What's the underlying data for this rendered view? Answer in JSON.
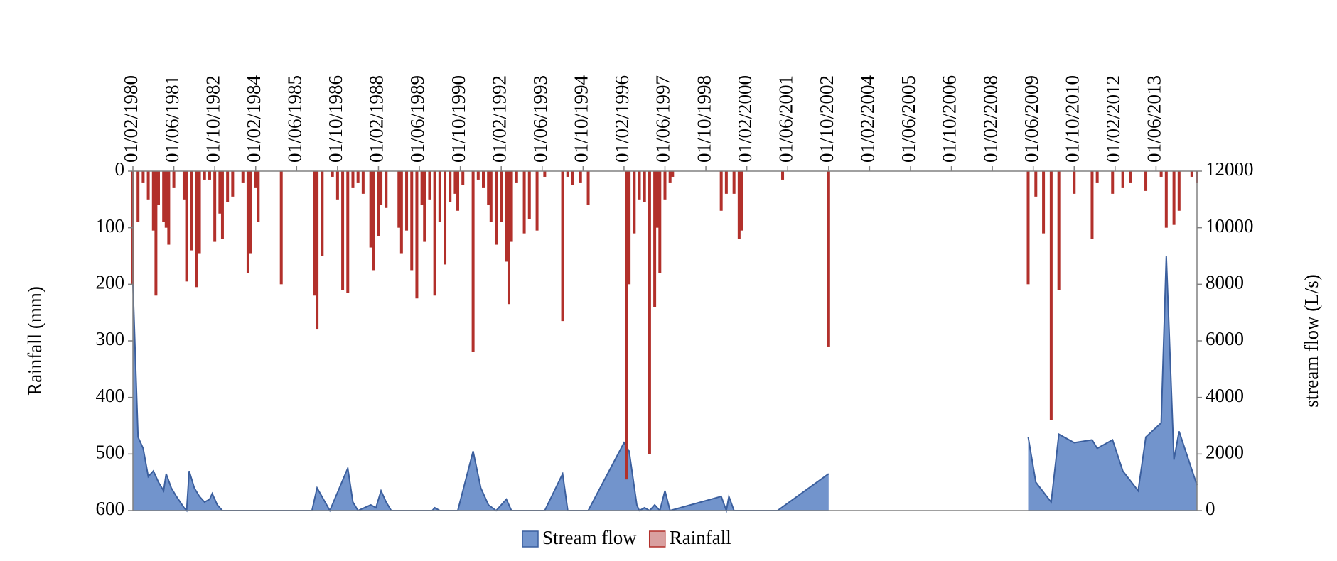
{
  "chart_data": {
    "type": "hyetograph",
    "ylabel": "Rainfall (mm)",
    "y2label": "stream flow  (L/s)",
    "xlim": [
      "01/02/1980",
      "01/10/2014"
    ],
    "xticks": [
      "01/02/1980",
      "01/06/1981",
      "01/10/1982",
      "01/02/1984",
      "01/06/1985",
      "01/10/1986",
      "01/02/1988",
      "01/06/1989",
      "01/10/1990",
      "01/02/1992",
      "01/06/1993",
      "01/10/1994",
      "01/02/1996",
      "01/06/1997",
      "01/10/1998",
      "01/02/2000",
      "01/06/2001",
      "01/10/2002",
      "01/02/2004",
      "01/06/2005",
      "01/10/2006",
      "01/02/2008",
      "01/06/2009",
      "01/10/2010",
      "01/02/2012",
      "01/06/2013"
    ],
    "ylim": [
      600,
      0
    ],
    "yticks": [
      0,
      100,
      200,
      300,
      400,
      500,
      600
    ],
    "y2lim": [
      0,
      12000
    ],
    "y2ticks": [
      0,
      2000,
      4000,
      6000,
      8000,
      10000,
      12000
    ],
    "legend": "bottom",
    "series": [
      {
        "name": "Stream flow",
        "kind": "area",
        "axis": "y2",
        "color": "#7294cc",
        "edge": "#3b5f9e",
        "x": [
          "01/02/1980",
          "01/04/1980",
          "01/06/1980",
          "01/08/1980",
          "01/10/1980",
          "01/12/1980",
          "01/02/1981",
          "01/03/1981",
          "01/05/1981",
          "01/07/1981",
          "01/10/1981",
          "01/11/1981",
          "01/12/1981",
          "01/02/1982",
          "01/04/1982",
          "01/06/1982",
          "01/08/1982",
          "01/09/1982",
          "01/11/1982",
          "01/01/1983",
          "01/12/1985",
          "01/02/1986",
          "01/07/1986",
          "01/02/1987",
          "01/04/1987",
          "01/06/1987",
          "01/11/1987",
          "01/01/1988",
          "01/03/1988",
          "01/05/1988",
          "01/07/1988",
          "01/11/1989",
          "01/12/1989",
          "01/02/1990",
          "01/09/1990",
          "01/03/1991",
          "01/06/1991",
          "01/09/1991",
          "01/12/1991",
          "01/04/1992",
          "01/06/1992",
          "01/07/1993",
          "01/02/1994",
          "01/04/1994",
          "01/12/1994",
          "01/02/1996",
          "01/04/1996",
          "01/07/1996",
          "01/08/1996",
          "01/10/1996",
          "01/12/1996",
          "01/02/1997",
          "01/04/1997",
          "01/06/1997",
          "01/08/1997",
          "01/04/1999",
          "01/06/1999",
          "01/07/1999",
          "01/09/1999",
          "01/02/2001",
          "01/10/2002",
          "01/11/2002",
          "01/04/2009",
          "01/07/2009",
          "01/01/2010",
          "01/04/2010",
          "01/10/2010",
          "01/05/2011",
          "01/07/2011",
          "01/01/2012",
          "01/05/2012",
          "01/11/2012",
          "01/02/2013",
          "01/08/2013",
          "01/10/2013",
          "01/01/2014",
          "01/03/2014",
          "01/10/2014"
        ],
        "values": [
          8000,
          2600,
          2200,
          1200,
          1400,
          1000,
          700,
          1300,
          800,
          500,
          100,
          0,
          1400,
          800,
          500,
          300,
          400,
          600,
          200,
          0,
          0,
          800,
          0,
          1500,
          300,
          0,
          200,
          100,
          700,
          300,
          0,
          0,
          100,
          0,
          0,
          2100,
          800,
          200,
          0,
          400,
          0,
          0,
          1300,
          0,
          0,
          2400,
          2100,
          200,
          0,
          100,
          0,
          200,
          0,
          700,
          0,
          500,
          0,
          500,
          0,
          0,
          1300,
          null,
          2600,
          1000,
          300,
          2700,
          2400,
          2500,
          2200,
          2500,
          1400,
          700,
          2600,
          3100,
          9000,
          1800,
          2800,
          900
        ]
      },
      {
        "name": "Rainfall",
        "kind": "bar",
        "axis": "y",
        "color": "#b2302b",
        "legend_color": "#d9a0a0",
        "x": [
          "01/02/1980",
          "01/04/1980",
          "01/06/1980",
          "01/08/1980",
          "01/10/1980",
          "01/11/1980",
          "01/12/1980",
          "01/02/1981",
          "01/03/1981",
          "01/04/1981",
          "01/06/1981",
          "01/10/1981",
          "01/11/1981",
          "01/01/1982",
          "01/03/1982",
          "01/04/1982",
          "01/06/1982",
          "01/08/1982",
          "01/10/1982",
          "01/12/1982",
          "01/01/1983",
          "01/03/1983",
          "01/05/1983",
          "01/09/1983",
          "01/11/1983",
          "01/12/1983",
          "01/02/1984",
          "01/03/1984",
          "01/12/1984",
          "01/01/1986",
          "01/02/1986",
          "01/04/1986",
          "01/08/1986",
          "01/10/1986",
          "01/12/1986",
          "01/02/1987",
          "01/04/1987",
          "01/06/1987",
          "01/08/1987",
          "01/11/1987",
          "01/12/1987",
          "01/02/1988",
          "01/03/1988",
          "01/05/1988",
          "01/10/1988",
          "01/11/1988",
          "01/01/1989",
          "01/03/1989",
          "01/05/1989",
          "01/07/1989",
          "01/08/1989",
          "01/10/1989",
          "01/12/1989",
          "01/02/1990",
          "01/04/1990",
          "01/06/1990",
          "01/08/1990",
          "01/09/1990",
          "01/11/1990",
          "01/03/1991",
          "01/05/1991",
          "01/07/1991",
          "01/09/1991",
          "01/10/1991",
          "01/12/1991",
          "01/02/1992",
          "01/04/1992",
          "01/05/1992",
          "01/06/1992",
          "01/08/1992",
          "01/11/1992",
          "01/01/1993",
          "01/04/1993",
          "01/07/1993",
          "01/02/1994",
          "01/04/1994",
          "01/06/1994",
          "01/09/1994",
          "01/12/1994",
          "01/03/1996",
          "01/04/1996",
          "01/06/1996",
          "01/08/1996",
          "01/10/1996",
          "01/12/1996",
          "01/02/1997",
          "01/03/1997",
          "01/04/1997",
          "01/06/1997",
          "01/08/1997",
          "01/09/1997",
          "01/04/1999",
          "01/06/1999",
          "01/09/1999",
          "01/11/1999",
          "01/12/1999",
          "01/04/2001",
          "01/10/2002",
          "01/04/2009",
          "01/07/2009",
          "01/10/2009",
          "01/01/2010",
          "01/04/2010",
          "01/10/2010",
          "01/05/2011",
          "01/07/2011",
          "01/01/2012",
          "01/05/2012",
          "01/08/2012",
          "01/02/2013",
          "01/08/2013",
          "01/10/2013",
          "01/01/2014",
          "01/03/2014",
          "01/08/2014",
          "01/10/2014"
        ],
        "values": [
          200,
          90,
          20,
          50,
          105,
          220,
          60,
          90,
          100,
          130,
          30,
          50,
          195,
          140,
          205,
          145,
          15,
          15,
          125,
          75,
          120,
          55,
          45,
          20,
          180,
          145,
          30,
          90,
          200,
          220,
          280,
          150,
          10,
          50,
          210,
          215,
          30,
          20,
          40,
          135,
          175,
          115,
          60,
          65,
          100,
          145,
          105,
          175,
          225,
          60,
          125,
          50,
          220,
          90,
          165,
          55,
          40,
          70,
          25,
          320,
          15,
          30,
          60,
          90,
          130,
          90,
          160,
          235,
          125,
          20,
          110,
          85,
          105,
          10,
          265,
          10,
          25,
          20,
          60,
          545,
          200,
          110,
          50,
          55,
          500,
          240,
          100,
          180,
          50,
          20,
          10,
          70,
          40,
          40,
          120,
          105,
          15,
          310,
          200,
          45,
          110,
          440,
          210,
          40,
          120,
          20,
          40,
          30,
          20,
          35,
          10,
          100,
          95,
          70,
          10,
          20
        ]
      }
    ]
  }
}
